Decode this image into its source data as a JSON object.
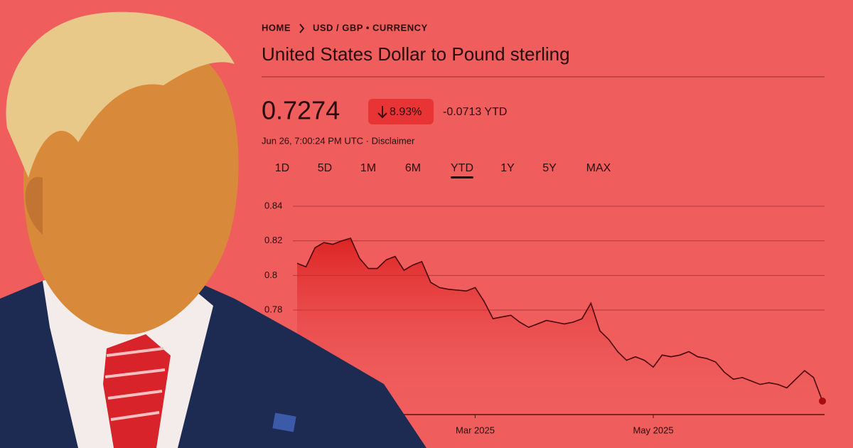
{
  "header": {
    "breadcrumb": [
      "HOME",
      "USD / GBP • CURRENCY"
    ],
    "title": "United States Dollar to Pound sterling",
    "price": "0.7274",
    "change_percent": "8.93%",
    "change_ytd": "-0.0713 YTD",
    "timestamp": "Jun 26, 7:00:24 PM UTC · Disclaimer"
  },
  "tabs": [
    {
      "label": "1D",
      "selected": false
    },
    {
      "label": "5D",
      "selected": false
    },
    {
      "label": "1M",
      "selected": false
    },
    {
      "label": "6M",
      "selected": false
    },
    {
      "label": "YTD",
      "selected": true
    },
    {
      "label": "1Y",
      "selected": false
    },
    {
      "label": "5Y",
      "selected": false
    },
    {
      "label": "MAX",
      "selected": false
    }
  ],
  "chart_data": {
    "type": "area",
    "color": "#4a0606",
    "grid": true,
    "ylim": [
      0.72,
      0.84
    ],
    "yticks": [
      0.78,
      0.8,
      0.82,
      0.84
    ],
    "categories": [
      null,
      null,
      null,
      null,
      null,
      null,
      null,
      null,
      null,
      null,
      null,
      null,
      null,
      null,
      null,
      null,
      null,
      null,
      null,
      null,
      "Mar 2025",
      null,
      null,
      null,
      null,
      null,
      null,
      null,
      null,
      null,
      null,
      null,
      null,
      null,
      null,
      null,
      null,
      null,
      null,
      null,
      "May 2025",
      null,
      null,
      null,
      null,
      null,
      null,
      null,
      null,
      null,
      null,
      null,
      null,
      null,
      null,
      null,
      null,
      null,
      null,
      null
    ],
    "values": [
      0.807,
      0.805,
      0.816,
      0.819,
      0.818,
      0.82,
      0.8215,
      0.81,
      0.804,
      0.804,
      0.809,
      0.811,
      0.803,
      0.806,
      0.808,
      0.796,
      0.793,
      0.792,
      0.7915,
      0.791,
      0.793,
      0.785,
      0.775,
      0.776,
      0.777,
      0.773,
      0.77,
      0.772,
      0.774,
      0.773,
      0.772,
      0.773,
      0.775,
      0.784,
      0.768,
      0.763,
      0.756,
      0.751,
      0.753,
      0.751,
      0.747,
      0.754,
      0.753,
      0.754,
      0.756,
      0.753,
      0.752,
      0.75,
      0.744,
      0.74,
      0.741,
      0.739,
      0.737,
      0.738,
      0.737,
      0.735,
      0.74,
      0.745,
      0.741,
      0.7274
    ]
  }
}
